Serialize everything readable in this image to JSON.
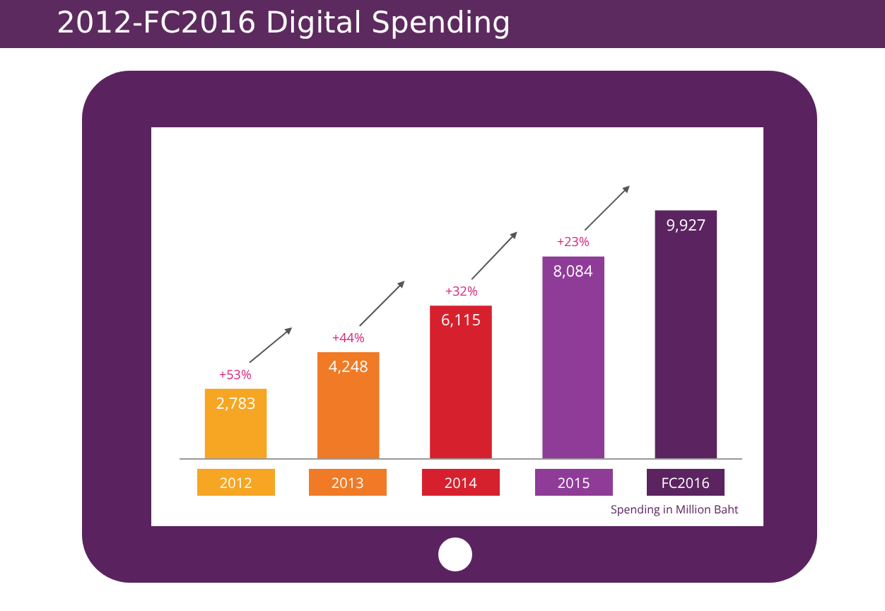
{
  "chart_data": {
    "type": "bar",
    "title": "2012-FC2016 Digital Spending",
    "categories": [
      "2012",
      "2013",
      "2014",
      "2015",
      "FC2016"
    ],
    "values": [
      2783,
      4248,
      6115,
      8084,
      9927
    ],
    "colors": [
      "#f6a623",
      "#f07a26",
      "#d7202e",
      "#8f3b98",
      "#5b2461"
    ],
    "value_labels": [
      "2,783",
      "4,248",
      "6,115",
      "8,084",
      "9,927"
    ],
    "annotations": [
      "+53%",
      "+44%",
      "+32%",
      "+23%",
      "Spending in Million Baht"
    ]
  }
}
